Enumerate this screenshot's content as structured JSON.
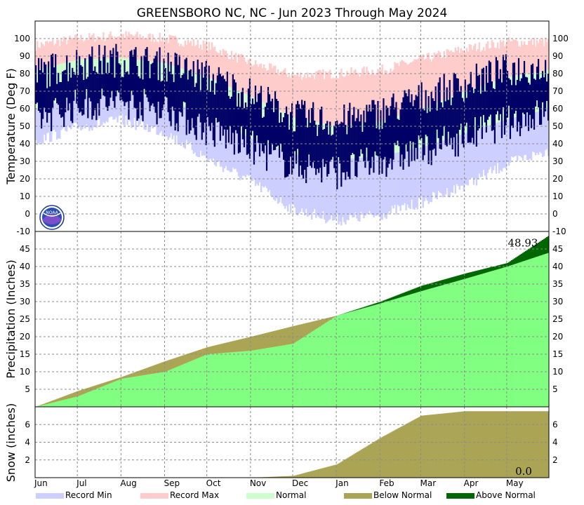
{
  "title": "GREENSBORO NC, NC - Jun 2023 Through May 2024",
  "colors": {
    "record_min": "#cccfff",
    "record_max": "#ffcccc",
    "normal": "#ccffcc",
    "observed": "#000066",
    "normal_precip": "#80ff80",
    "below_normal": "#aaa455",
    "above_normal": "#006600",
    "grid": "#8c8c8c"
  },
  "legend": [
    {
      "label": "Record Min",
      "color": "#cccfff"
    },
    {
      "label": "Record Max",
      "color": "#ffcccc"
    },
    {
      "label": "Normal",
      "color": "#ccffcc"
    },
    {
      "label": "Below Normal",
      "color": "#aaa455"
    },
    {
      "label": "Above Normal",
      "color": "#006600"
    }
  ],
  "logo": {
    "text": "NOAA",
    "icon": "noaa-logo-icon"
  },
  "chart_data": [
    {
      "type": "area",
      "panel": "temperature",
      "ylabel": "Temperature (Deg F)",
      "ylim": [
        -10,
        110
      ],
      "yticks": [
        -10,
        0,
        10,
        20,
        30,
        40,
        50,
        60,
        70,
        80,
        90,
        100
      ],
      "grid": true,
      "months": [
        "Jun",
        "Jul",
        "Aug",
        "Sep",
        "Oct",
        "Nov",
        "Dec",
        "Jan",
        "Feb",
        "Mar",
        "Apr",
        "May"
      ],
      "x": [
        "2023-06-01",
        "2023-07-01",
        "2023-08-01",
        "2023-09-01",
        "2023-10-01",
        "2023-11-01",
        "2023-12-01",
        "2024-01-01",
        "2024-02-01",
        "2024-03-01",
        "2024-04-01",
        "2024-05-01",
        "2024-05-31"
      ],
      "series": [
        {
          "name": "Record Max",
          "values": [
            96,
            100,
            102,
            100,
            96,
            86,
            79,
            80,
            82,
            88,
            94,
            98,
            98
          ]
        },
        {
          "name": "Normal",
          "high": [
            82,
            88,
            89,
            86,
            78,
            67,
            55,
            50,
            53,
            60,
            70,
            78,
            82
          ],
          "low": [
            60,
            67,
            69,
            66,
            55,
            43,
            34,
            31,
            33,
            38,
            46,
            54,
            60
          ]
        },
        {
          "name": "Record Min",
          "values": [
            45,
            53,
            57,
            50,
            35,
            22,
            6,
            0,
            3,
            10,
            20,
            32,
            40
          ]
        },
        {
          "name": "Observed",
          "high": [
            80,
            86,
            88,
            85,
            78,
            68,
            56,
            52,
            58,
            66,
            74,
            82,
            84
          ],
          "low": [
            58,
            66,
            68,
            64,
            52,
            42,
            32,
            28,
            34,
            40,
            48,
            56,
            62
          ]
        }
      ]
    },
    {
      "type": "area",
      "panel": "precipitation",
      "ylabel": "Precipitation (Inches)",
      "ylim": [
        0,
        50
      ],
      "yticks": [
        5,
        10,
        15,
        20,
        25,
        30,
        35,
        40,
        45
      ],
      "grid": true,
      "x": [
        "2023-06-01",
        "2023-07-01",
        "2023-08-01",
        "2023-09-01",
        "2023-10-01",
        "2023-11-01",
        "2023-12-01",
        "2024-01-01",
        "2024-02-01",
        "2024-03-01",
        "2024-04-01",
        "2024-05-01",
        "2024-05-31"
      ],
      "series": [
        {
          "name": "Normal",
          "values": [
            0,
            4.5,
            8.5,
            13,
            17,
            20,
            23,
            26,
            29.5,
            33,
            36.5,
            40,
            44
          ]
        },
        {
          "name": "Observed",
          "values": [
            0,
            3,
            8,
            10,
            15,
            16,
            18,
            26,
            30,
            34.5,
            38,
            41,
            48.93
          ]
        }
      ],
      "annotation": "48.93"
    },
    {
      "type": "area",
      "panel": "snow",
      "ylabel": "Snow (inches)",
      "ylim": [
        0,
        8
      ],
      "yticks": [
        2,
        4,
        6
      ],
      "grid": true,
      "x": [
        "2023-06-01",
        "2023-07-01",
        "2023-08-01",
        "2023-09-01",
        "2023-10-01",
        "2023-11-01",
        "2023-12-01",
        "2024-01-01",
        "2024-02-01",
        "2024-03-01",
        "2024-04-01",
        "2024-05-01",
        "2024-05-31"
      ],
      "series": [
        {
          "name": "Normal",
          "values": [
            0,
            0,
            0,
            0,
            0,
            0,
            0.2,
            1.5,
            4.5,
            7,
            7.5,
            7.5,
            7.5
          ]
        },
        {
          "name": "Observed",
          "values": [
            0,
            0,
            0,
            0,
            0,
            0,
            0,
            0,
            0,
            0,
            0,
            0,
            0
          ]
        }
      ],
      "annotation": "0.0"
    }
  ]
}
